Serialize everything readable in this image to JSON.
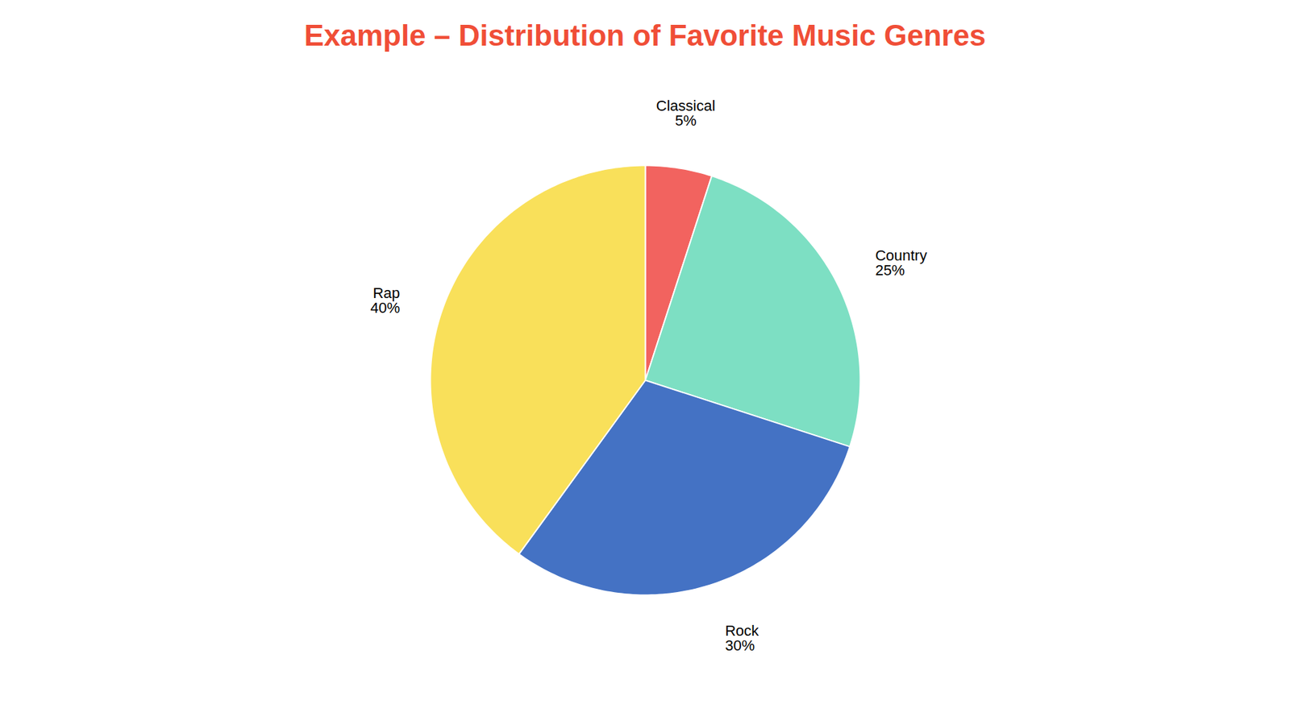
{
  "chart_data": {
    "type": "pie",
    "title": "Example – Distribution of Favorite Music Genres",
    "categories": [
      "Classical",
      "Country",
      "Rock",
      "Rap"
    ],
    "values": [
      5,
      25,
      30,
      40
    ],
    "value_labels": [
      "5%",
      "25%",
      "30%",
      "40%"
    ],
    "colors": [
      "#F2635F",
      "#7DDFC3",
      "#4472C4",
      "#F9E05A"
    ],
    "data_labels": true
  }
}
